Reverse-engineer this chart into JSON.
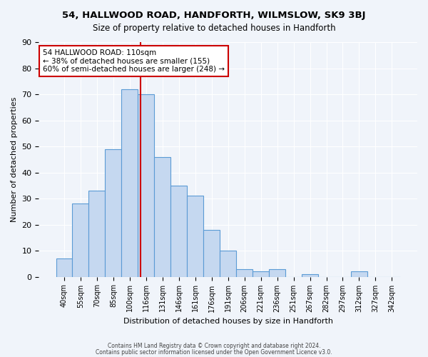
{
  "title": "54, HALLWOOD ROAD, HANDFORTH, WILMSLOW, SK9 3BJ",
  "subtitle": "Size of property relative to detached houses in Handforth",
  "xlabel": "Distribution of detached houses by size in Handforth",
  "ylabel": "Number of detached properties",
  "bar_color": "#c5d8f0",
  "bar_edge_color": "#5b9bd5",
  "categories": [
    "40sqm",
    "55sqm",
    "70sqm",
    "85sqm",
    "100sqm",
    "116sqm",
    "131sqm",
    "146sqm",
    "161sqm",
    "176sqm",
    "191sqm",
    "206sqm",
    "221sqm",
    "236sqm",
    "251sqm",
    "267sqm",
    "282sqm",
    "297sqm",
    "312sqm",
    "327sqm",
    "342sqm"
  ],
  "bar_heights": [
    7,
    28,
    33,
    49,
    72,
    70,
    46,
    35,
    31,
    18,
    10,
    3,
    2,
    3,
    0,
    1,
    0,
    0,
    2,
    0,
    0
  ],
  "vline_color": "#cc0000",
  "annotation_text": "54 HALLWOOD ROAD: 110sqm\n← 38% of detached houses are smaller (155)\n60% of semi-detached houses are larger (248) →",
  "annotation_box_color": "#ffffff",
  "annotation_box_edge": "#cc0000",
  "footer_line1": "Contains HM Land Registry data © Crown copyright and database right 2024.",
  "footer_line2": "Contains public sector information licensed under the Open Government Licence v3.0.",
  "background_color": "#f0f4fa",
  "ylim": [
    0,
    90
  ],
  "yticks": [
    0,
    10,
    20,
    30,
    40,
    50,
    60,
    70,
    80,
    90
  ]
}
